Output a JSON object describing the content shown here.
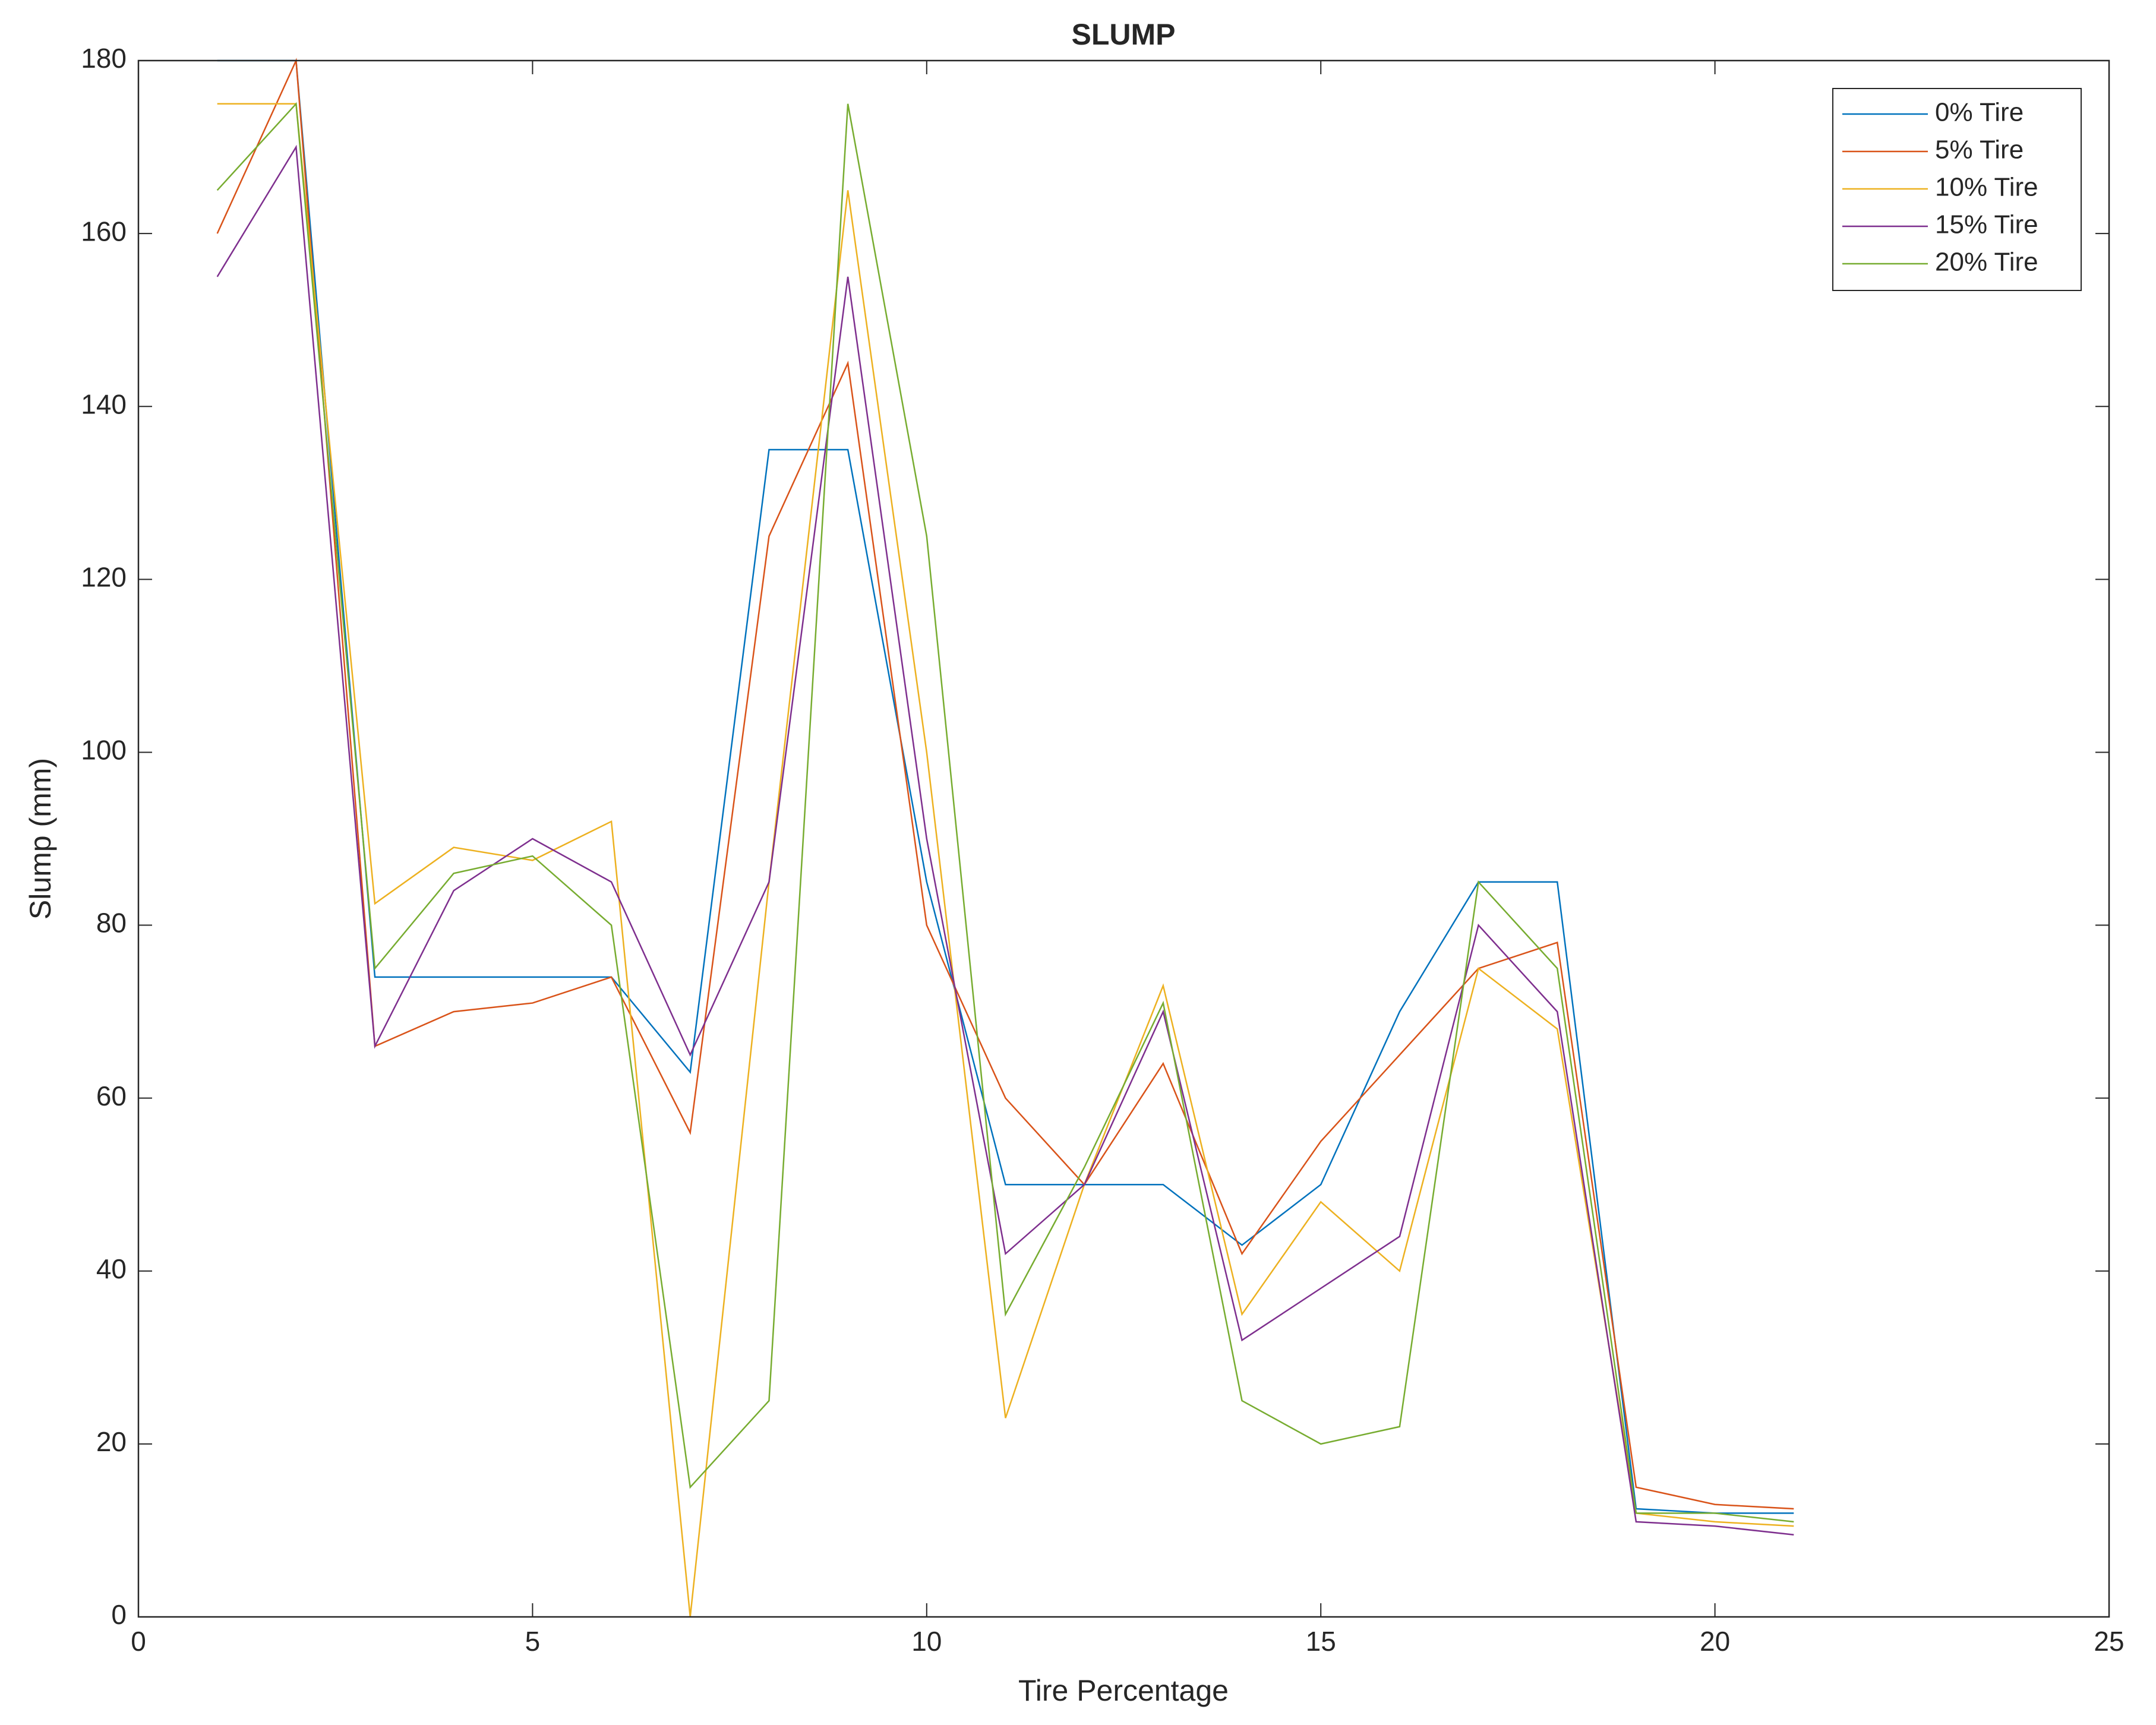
{
  "chart_data": {
    "type": "line",
    "title": "SLUMP",
    "x_label": "Tire Percentage",
    "y_label": "Slump (mm)",
    "x": [
      1,
      2,
      3,
      4,
      5,
      6,
      7,
      8,
      9,
      10,
      11,
      12,
      13,
      14,
      15,
      16,
      17,
      18,
      19,
      20,
      21
    ],
    "series": [
      {
        "name": "0% Tire",
        "color": "#0072bd",
        "values": [
          180,
          180,
          74,
          74,
          74,
          74,
          63,
          135,
          135,
          85,
          50,
          50,
          50,
          43,
          50,
          70,
          85,
          85,
          12.5,
          12,
          12
        ]
      },
      {
        "name": "5% Tire",
        "color": "#d95319",
        "values": [
          160,
          180,
          66,
          70,
          71,
          74,
          56,
          125,
          145,
          80,
          60,
          50,
          64,
          42,
          55,
          65,
          75,
          78,
          15,
          13,
          12.5
        ]
      },
      {
        "name": "10% Tire",
        "color": "#edb120",
        "values": [
          175,
          175,
          82.5,
          89,
          87.5,
          92,
          0,
          85,
          165,
          100,
          23,
          50,
          73,
          35,
          48,
          40,
          75,
          68,
          12,
          11,
          10.5
        ]
      },
      {
        "name": "15% Tire",
        "color": "#7e2f8e",
        "values": [
          155,
          170,
          66,
          84,
          90,
          85,
          65,
          85,
          155,
          90,
          42,
          50,
          70,
          32,
          38,
          44,
          80,
          70,
          11,
          10.5,
          9.5
        ]
      },
      {
        "name": "20% Tire",
        "color": "#77ac30",
        "values": [
          165,
          175,
          75,
          86,
          88,
          80,
          15,
          25,
          175,
          125,
          35,
          52,
          71,
          25,
          20,
          22,
          85,
          75,
          12,
          12,
          11
        ]
      }
    ],
    "xlim": [
      0,
      25
    ],
    "xticks": [
      0,
      5,
      10,
      15,
      20,
      25
    ],
    "ylim": [
      0,
      180
    ],
    "yticks": [
      0,
      20,
      40,
      60,
      80,
      100,
      120,
      140,
      160,
      180
    ],
    "legend": "northeast",
    "grid": false
  }
}
